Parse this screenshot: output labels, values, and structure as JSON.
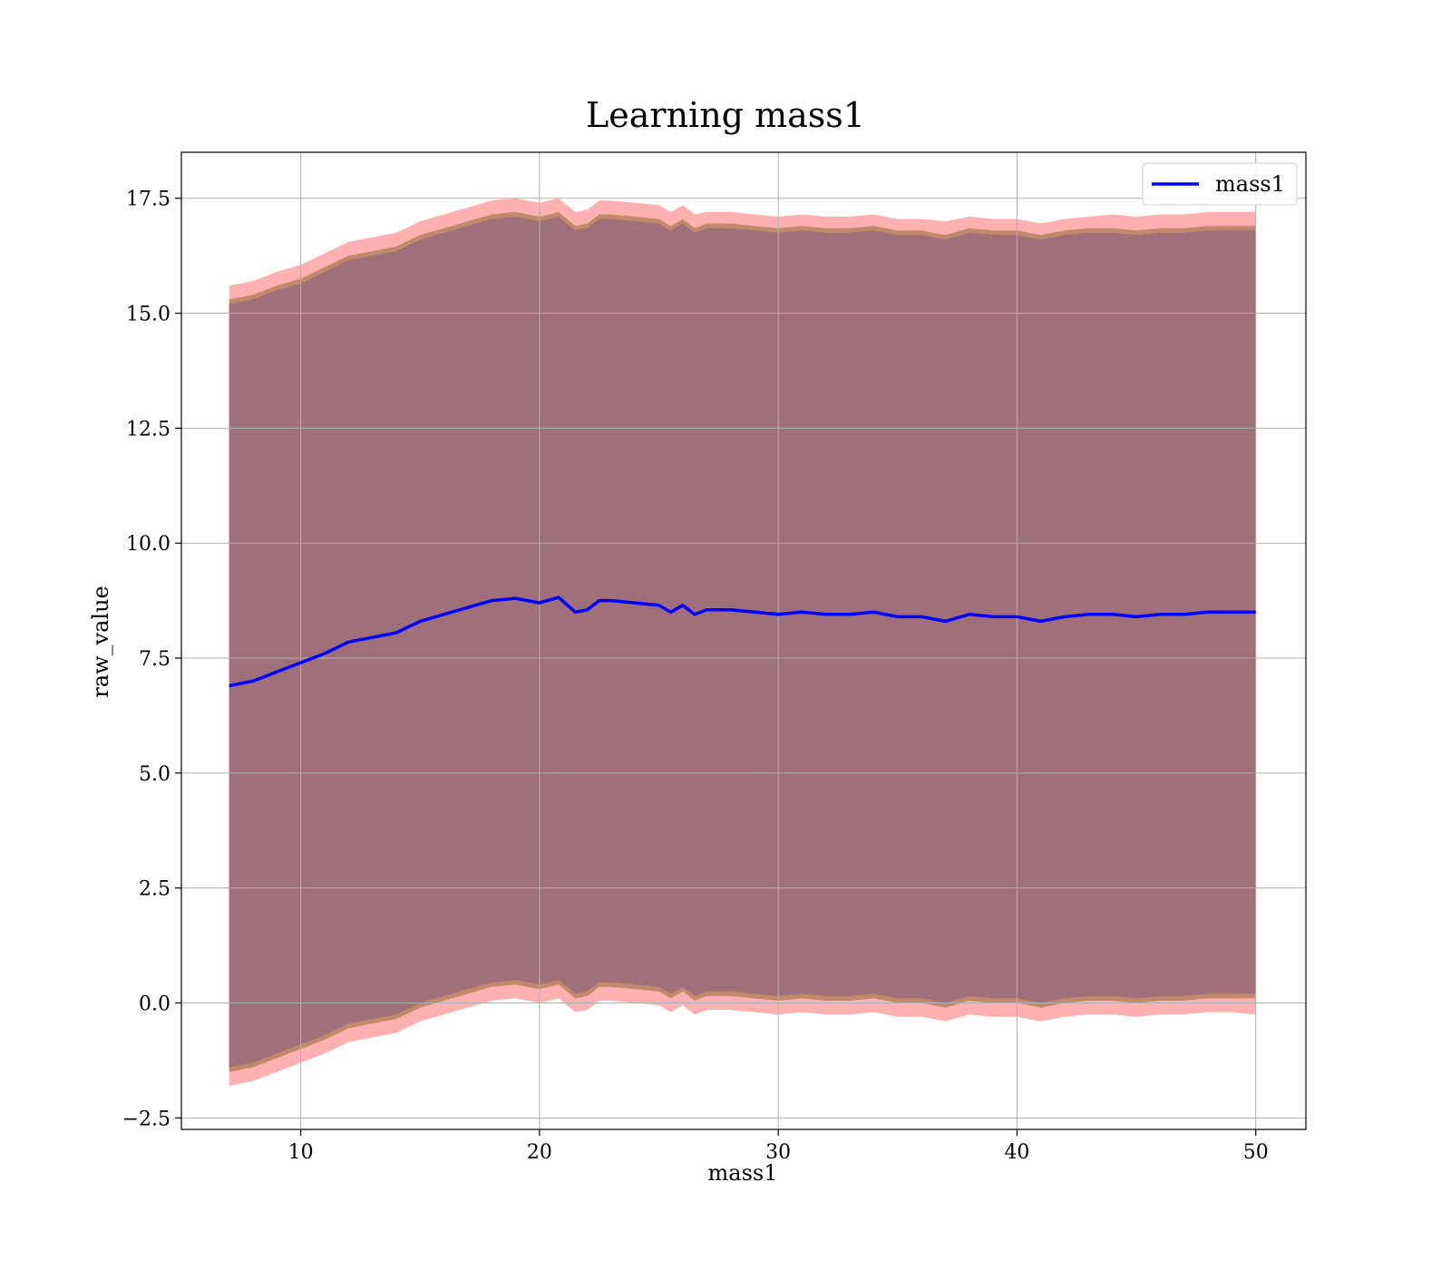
{
  "chart_data": {
    "type": "area",
    "title": "Learning mass1",
    "xlabel": "mass1",
    "ylabel": "raw_value",
    "xlim": [
      5,
      52.1
    ],
    "ylim": [
      -2.75,
      18.5
    ],
    "xticks": [
      10,
      20,
      30,
      40,
      50
    ],
    "xtick_labels": [
      "10",
      "20",
      "30",
      "40",
      "50"
    ],
    "yticks": [
      -2.5,
      0.0,
      2.5,
      5.0,
      7.5,
      10.0,
      12.5,
      15.0,
      17.5
    ],
    "ytick_labels": [
      "−2.5",
      "0.0",
      "2.5",
      "5.0",
      "7.5",
      "10.0",
      "12.5",
      "15.0",
      "17.5"
    ],
    "grid": true,
    "legend_position": "top-right",
    "colors": {
      "line": "#0000ff",
      "band_outer": "#ffb0b0",
      "band_middle": "#c08a6a",
      "band_inner": "#a0707a",
      "grid": "#b0b0b0"
    },
    "series": [
      {
        "name": "mass1",
        "x": [
          7,
          8,
          9,
          10,
          11,
          12,
          13,
          14,
          15,
          16,
          17,
          18,
          19,
          20,
          20.8,
          21.5,
          22,
          22.5,
          23,
          24,
          25,
          25.5,
          26,
          26.5,
          27,
          28,
          29,
          30,
          31,
          32,
          33,
          34,
          35,
          36,
          37,
          38,
          39,
          40,
          41,
          42,
          43,
          44,
          45,
          46,
          47,
          48,
          49,
          50
        ],
        "values": [
          6.9,
          7.0,
          7.2,
          7.4,
          7.6,
          7.85,
          7.95,
          8.05,
          8.3,
          8.45,
          8.6,
          8.75,
          8.8,
          8.7,
          8.82,
          8.5,
          8.55,
          8.75,
          8.75,
          8.7,
          8.65,
          8.5,
          8.65,
          8.45,
          8.55,
          8.55,
          8.5,
          8.45,
          8.5,
          8.45,
          8.45,
          8.5,
          8.4,
          8.4,
          8.3,
          8.45,
          8.4,
          8.4,
          8.3,
          8.4,
          8.45,
          8.45,
          8.4,
          8.45,
          8.45,
          8.5,
          8.5,
          8.5
        ]
      }
    ],
    "bands": [
      {
        "label": "outer",
        "x": [
          7,
          8,
          9,
          10,
          11,
          12,
          13,
          14,
          15,
          16,
          17,
          18,
          19,
          20,
          20.8,
          21.5,
          22,
          22.5,
          23,
          24,
          25,
          25.5,
          26,
          26.5,
          27,
          28,
          29,
          30,
          31,
          32,
          33,
          34,
          35,
          36,
          37,
          38,
          39,
          40,
          41,
          42,
          43,
          44,
          45,
          46,
          47,
          48,
          49,
          50
        ],
        "upper": [
          15.6,
          15.7,
          15.9,
          16.05,
          16.3,
          16.55,
          16.65,
          16.75,
          17.0,
          17.15,
          17.3,
          17.45,
          17.5,
          17.4,
          17.5,
          17.2,
          17.25,
          17.45,
          17.45,
          17.4,
          17.35,
          17.2,
          17.35,
          17.15,
          17.2,
          17.2,
          17.15,
          17.1,
          17.15,
          17.1,
          17.1,
          17.15,
          17.05,
          17.05,
          17.0,
          17.1,
          17.05,
          17.05,
          16.95,
          17.05,
          17.1,
          17.15,
          17.1,
          17.15,
          17.15,
          17.2,
          17.2,
          17.2
        ],
        "lower": [
          -1.8,
          -1.7,
          -1.5,
          -1.3,
          -1.1,
          -0.85,
          -0.75,
          -0.65,
          -0.4,
          -0.25,
          -0.1,
          0.05,
          0.1,
          0.0,
          0.1,
          -0.2,
          -0.15,
          0.05,
          0.05,
          0.0,
          -0.05,
          -0.2,
          -0.05,
          -0.25,
          -0.15,
          -0.15,
          -0.2,
          -0.25,
          -0.2,
          -0.25,
          -0.25,
          -0.2,
          -0.3,
          -0.3,
          -0.4,
          -0.25,
          -0.3,
          -0.3,
          -0.4,
          -0.3,
          -0.25,
          -0.25,
          -0.3,
          -0.25,
          -0.25,
          -0.2,
          -0.2,
          -0.25
        ]
      },
      {
        "label": "middle",
        "x": [
          7,
          8,
          9,
          10,
          11,
          12,
          13,
          14,
          15,
          16,
          17,
          18,
          19,
          20,
          20.8,
          21.5,
          22,
          22.5,
          23,
          24,
          25,
          25.5,
          26,
          26.5,
          27,
          28,
          29,
          30,
          31,
          32,
          33,
          34,
          35,
          36,
          37,
          38,
          39,
          40,
          41,
          42,
          43,
          44,
          45,
          46,
          47,
          48,
          49,
          50
        ],
        "upper": [
          15.3,
          15.4,
          15.6,
          15.75,
          16.0,
          16.25,
          16.35,
          16.45,
          16.7,
          16.85,
          17.0,
          17.15,
          17.2,
          17.1,
          17.2,
          16.9,
          16.95,
          17.15,
          17.15,
          17.1,
          17.05,
          16.9,
          17.05,
          16.85,
          16.95,
          16.95,
          16.9,
          16.85,
          16.9,
          16.85,
          16.85,
          16.9,
          16.8,
          16.8,
          16.7,
          16.85,
          16.8,
          16.8,
          16.7,
          16.8,
          16.85,
          16.85,
          16.8,
          16.85,
          16.85,
          16.9,
          16.9,
          16.9
        ],
        "lower": [
          -1.5,
          -1.4,
          -1.2,
          -1.0,
          -0.8,
          -0.55,
          -0.45,
          -0.35,
          -0.1,
          0.05,
          0.2,
          0.35,
          0.4,
          0.3,
          0.4,
          0.1,
          0.15,
          0.35,
          0.35,
          0.3,
          0.25,
          0.1,
          0.25,
          0.05,
          0.15,
          0.15,
          0.1,
          0.05,
          0.1,
          0.05,
          0.05,
          0.1,
          0.0,
          0.0,
          -0.1,
          0.05,
          0.0,
          0.0,
          -0.1,
          0.0,
          0.05,
          0.05,
          0.0,
          0.05,
          0.05,
          0.1,
          0.1,
          0.1
        ]
      },
      {
        "label": "inner",
        "x": [
          7,
          8,
          9,
          10,
          11,
          12,
          13,
          14,
          15,
          16,
          17,
          18,
          19,
          20,
          20.8,
          21.5,
          22,
          22.5,
          23,
          24,
          25,
          25.5,
          26,
          26.5,
          27,
          28,
          29,
          30,
          31,
          32,
          33,
          34,
          35,
          36,
          37,
          38,
          39,
          40,
          41,
          42,
          43,
          44,
          45,
          46,
          47,
          48,
          49,
          50
        ],
        "upper": [
          15.2,
          15.3,
          15.5,
          15.65,
          15.9,
          16.15,
          16.25,
          16.35,
          16.6,
          16.75,
          16.9,
          17.05,
          17.1,
          17.0,
          17.1,
          16.8,
          16.85,
          17.05,
          17.05,
          17.0,
          16.95,
          16.8,
          16.95,
          16.75,
          16.85,
          16.85,
          16.8,
          16.75,
          16.8,
          16.75,
          16.75,
          16.8,
          16.7,
          16.7,
          16.6,
          16.75,
          16.7,
          16.7,
          16.6,
          16.7,
          16.75,
          16.75,
          16.7,
          16.75,
          16.75,
          16.8,
          16.8,
          16.8
        ],
        "lower": [
          -1.4,
          -1.3,
          -1.1,
          -0.9,
          -0.7,
          -0.45,
          -0.35,
          -0.25,
          0.0,
          0.15,
          0.3,
          0.45,
          0.5,
          0.4,
          0.5,
          0.2,
          0.25,
          0.45,
          0.45,
          0.4,
          0.35,
          0.2,
          0.35,
          0.15,
          0.25,
          0.25,
          0.2,
          0.15,
          0.2,
          0.15,
          0.15,
          0.2,
          0.1,
          0.1,
          0.0,
          0.15,
          0.1,
          0.1,
          0.0,
          0.1,
          0.15,
          0.15,
          0.1,
          0.15,
          0.15,
          0.2,
          0.2,
          0.2
        ]
      }
    ]
  }
}
